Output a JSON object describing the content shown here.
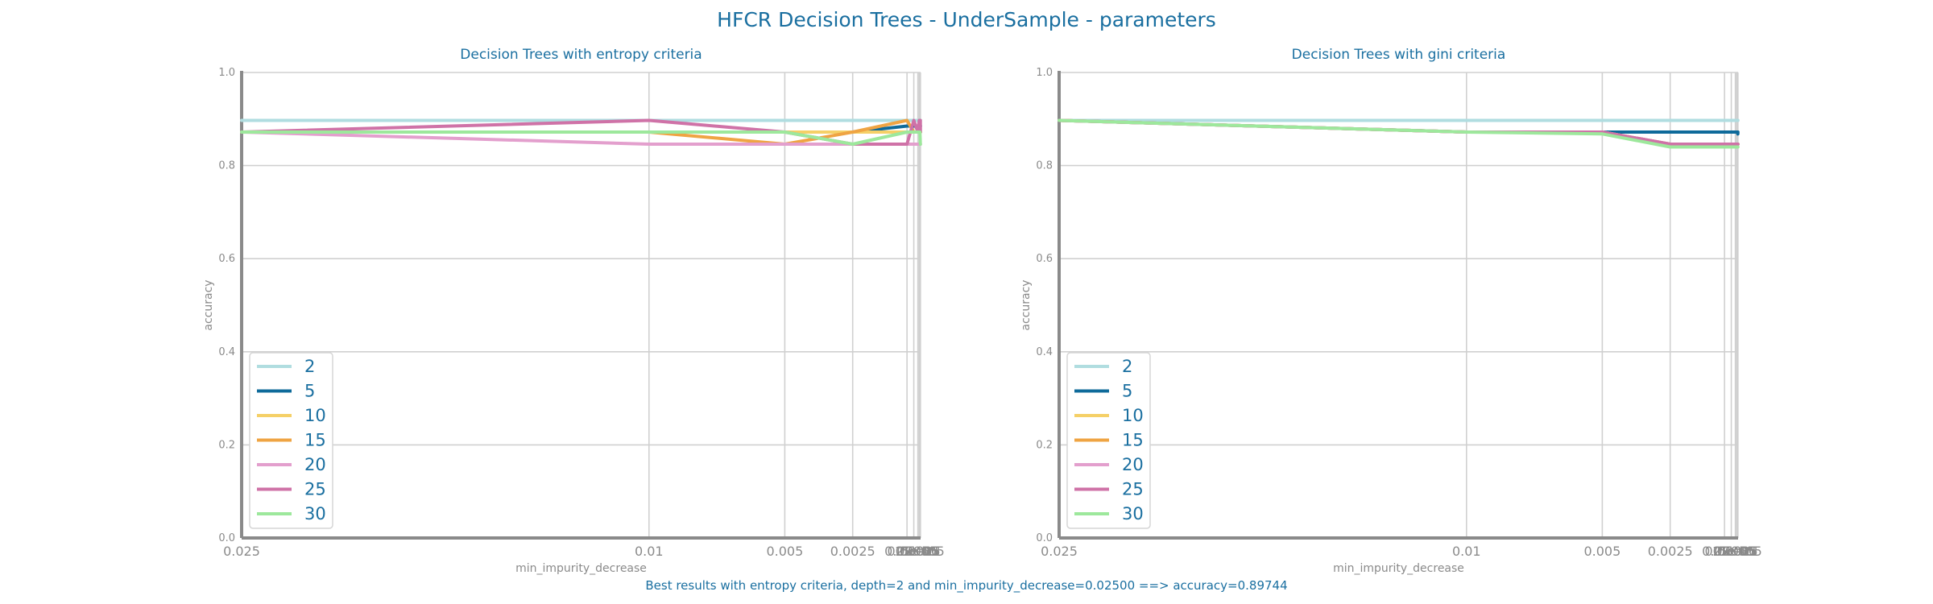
{
  "suptitle": "HFCR Decision Trees - UnderSample - parameters",
  "footer": "Best results with entropy criteria, depth=2 and min_impurity_decrease=0.02500 ==> accuracy=0.89744",
  "colors": {
    "text": "#1a6fa0",
    "tick": "#8a8a8a",
    "grid": "#d0d0d0",
    "axis": "#8a8a8a"
  },
  "chart_data": [
    {
      "type": "line",
      "title": "Decision Trees with entropy criteria",
      "xlabel": "min_impurity_decrease",
      "ylabel": "accuracy",
      "ylim": [
        0,
        1
      ],
      "yticks": [
        "0.0",
        "0.2",
        "0.4",
        "0.6",
        "0.8",
        "1.0"
      ],
      "x_tick_labels": [
        "0.025",
        "0.01",
        "0.005",
        "0.0025",
        "0.0005",
        "0.00025",
        "0.0001",
        "5e-05",
        "2.5e-05",
        "1e-05",
        "5e-06"
      ],
      "x": [
        0.025,
        0.01,
        0.005,
        0.0025,
        0.0005,
        0.00025,
        0.0001,
        5e-05,
        2.5e-05,
        1e-05,
        5e-06
      ],
      "grid": true,
      "legend_position": "lower-left",
      "series": [
        {
          "name": "2",
          "color": "#b0dde0",
          "values": [
            0.897,
            0.897,
            0.897,
            0.897,
            0.897,
            0.897,
            0.897,
            0.897,
            0.897,
            0.897,
            0.897
          ]
        },
        {
          "name": "5",
          "color": "#0e6a9a",
          "values": [
            0.872,
            0.872,
            0.872,
            0.872,
            0.885,
            0.885,
            0.885,
            0.885,
            0.885,
            0.885,
            0.885
          ]
        },
        {
          "name": "10",
          "color": "#f5d067",
          "values": [
            0.872,
            0.872,
            0.872,
            0.872,
            0.872,
            0.872,
            0.872,
            0.872,
            0.872,
            0.872,
            0.872
          ]
        },
        {
          "name": "15",
          "color": "#efa443",
          "values": [
            0.872,
            0.872,
            0.846,
            0.872,
            0.897,
            0.872,
            0.872,
            0.872,
            0.872,
            0.872,
            0.872
          ]
        },
        {
          "name": "20",
          "color": "#e39fcd",
          "values": [
            0.872,
            0.846,
            0.846,
            0.846,
            0.846,
            0.846,
            0.846,
            0.846,
            0.846,
            0.846,
            0.846
          ]
        },
        {
          "name": "25",
          "color": "#cf72a7",
          "values": [
            0.872,
            0.897,
            0.872,
            0.846,
            0.846,
            0.897,
            0.872,
            0.897,
            0.872,
            0.897,
            0.872
          ]
        },
        {
          "name": "30",
          "color": "#9de89c",
          "values": [
            0.872,
            0.872,
            0.872,
            0.846,
            0.872,
            0.872,
            0.872,
            0.872,
            0.872,
            0.846,
            0.846
          ]
        }
      ]
    },
    {
      "type": "line",
      "title": "Decision Trees with gini criteria",
      "xlabel": "min_impurity_decrease",
      "ylabel": "accuracy",
      "ylim": [
        0,
        1
      ],
      "yticks": [
        "0.0",
        "0.2",
        "0.4",
        "0.6",
        "0.8",
        "1.0"
      ],
      "x_tick_labels": [
        "0.025",
        "0.01",
        "0.005",
        "0.0025",
        "0.0005",
        "0.00025",
        "0.0001",
        "5e-05",
        "2.5e-05",
        "1e-05",
        "5e-06"
      ],
      "x": [
        0.025,
        0.01,
        0.005,
        0.0025,
        0.0005,
        0.00025,
        0.0001,
        5e-05,
        2.5e-05,
        1e-05,
        5e-06
      ],
      "grid": true,
      "legend_position": "lower-left",
      "series": [
        {
          "name": "2",
          "color": "#b0dde0",
          "values": [
            0.897,
            0.897,
            0.897,
            0.897,
            0.897,
            0.897,
            0.897,
            0.897,
            0.897,
            0.897,
            0.897
          ]
        },
        {
          "name": "5",
          "color": "#0e6a9a",
          "values": [
            0.897,
            0.872,
            0.872,
            0.872,
            0.872,
            0.872,
            0.872,
            0.872,
            0.872,
            0.868,
            0.872
          ]
        },
        {
          "name": "10",
          "color": "#f5d067",
          "values": [
            0.897,
            0.872,
            0.872,
            0.846,
            0.846,
            0.846,
            0.846,
            0.846,
            0.846,
            0.846,
            0.846
          ]
        },
        {
          "name": "15",
          "color": "#efa443",
          "values": [
            0.897,
            0.872,
            0.872,
            0.846,
            0.846,
            0.846,
            0.846,
            0.846,
            0.846,
            0.846,
            0.846
          ]
        },
        {
          "name": "20",
          "color": "#e39fcd",
          "values": [
            0.897,
            0.872,
            0.872,
            0.846,
            0.846,
            0.846,
            0.846,
            0.846,
            0.846,
            0.846,
            0.846
          ]
        },
        {
          "name": "25",
          "color": "#cf72a7",
          "values": [
            0.897,
            0.872,
            0.872,
            0.846,
            0.846,
            0.846,
            0.846,
            0.846,
            0.846,
            0.846,
            0.846
          ]
        },
        {
          "name": "30",
          "color": "#9de89c",
          "values": [
            0.897,
            0.872,
            0.868,
            0.84,
            0.84,
            0.84,
            0.84,
            0.84,
            0.84,
            0.84,
            0.84
          ]
        }
      ]
    }
  ]
}
